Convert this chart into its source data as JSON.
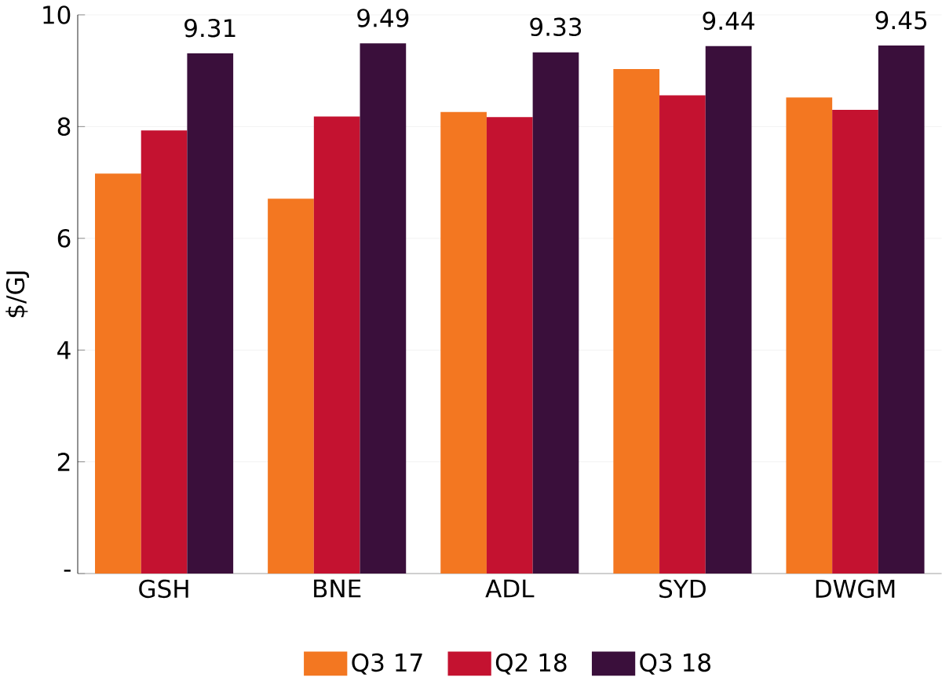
{
  "chart_data": {
    "type": "bar",
    "ylabel": "$/GJ",
    "categories": [
      "GSH",
      "BNE",
      "ADL",
      "SYD",
      "DWGM"
    ],
    "series": [
      {
        "name": "Q3 17",
        "color": "#f37721",
        "values": [
          7.16,
          6.71,
          8.26,
          9.03,
          8.52
        ]
      },
      {
        "name": "Q2 18",
        "color": "#c41230",
        "values": [
          7.93,
          8.18,
          8.17,
          8.56,
          8.3
        ]
      },
      {
        "name": "Q3 18",
        "color": "#3a0f3b",
        "values": [
          9.31,
          9.49,
          9.33,
          9.44,
          9.45
        ],
        "value_labels": [
          "9.31",
          "9.49",
          "9.33",
          "9.44",
          "9.45"
        ]
      }
    ],
    "ylim": [
      0,
      10
    ],
    "yticks": [
      {
        "value": 0,
        "label": "-"
      },
      2,
      4,
      6,
      8,
      10
    ],
    "grid": "y",
    "legend": "bottom"
  }
}
